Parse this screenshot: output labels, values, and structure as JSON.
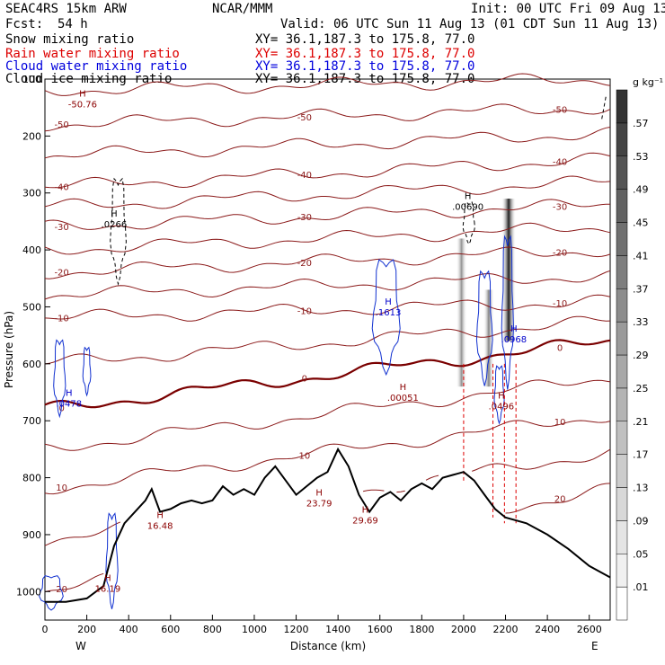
{
  "header": {
    "model": "SEAC4RS 15km ARW",
    "org": "NCAR/MMM",
    "init": "Init: 00 UTC Fri 09 Aug 13",
    "fcst_label": "Fcst:",
    "fcst_value": "54 h",
    "valid": "Valid: 06 UTC Sun 11 Aug 13 (01 CDT Sun 11 Aug 13)",
    "fields": [
      {
        "name": "Snow mixing ratio",
        "xy": "XY=  36.1,187.3 to 175.8, 77.0",
        "color": "#000000"
      },
      {
        "name": "Rain water mixing ratio",
        "xy": "XY=  36.1,187.3 to 175.8, 77.0",
        "color": "#dd0000"
      },
      {
        "name": "Cloud water mixing ratio",
        "xy": "XY=  36.1,187.3 to 175.8, 77.0",
        "color": "#0000dd"
      },
      {
        "name": "Cloud ice mixing ratio",
        "xy": "XY=  36.1,187.3 to 175.8, 77.0",
        "color": "#000000"
      }
    ]
  },
  "colorbar": {
    "unit": "g kg⁻¹",
    "levels": [
      ".01",
      ".05",
      ".09",
      ".13",
      ".17",
      ".21",
      ".25",
      ".29",
      ".33",
      ".37",
      ".41",
      ".45",
      ".49",
      ".53",
      ".57"
    ],
    "colors": [
      "#ffffff",
      "#f0f0f0",
      "#e4e4e4",
      "#d8d8d8",
      "#cccccc",
      "#c0c0c0",
      "#b4b4b4",
      "#a8a8a8",
      "#9a9a9a",
      "#8c8c8c",
      "#7e7e7e",
      "#707070",
      "#626262",
      "#545454",
      "#444444",
      "#333333"
    ]
  },
  "chart_data": {
    "type": "cross-section",
    "xlabel": "Distance (km)",
    "ylabel": "Pressure (hPa)",
    "xlim": [
      0,
      2700
    ],
    "ylim_pressure": [
      100,
      1050
    ],
    "x_ticks": [
      "0",
      "200",
      "400",
      "600",
      "800",
      "1000",
      "1200",
      "1400",
      "1600",
      "1800",
      "2000",
      "2200",
      "2400",
      "2600"
    ],
    "y_ticks": [
      "100",
      "200",
      "300",
      "400",
      "500",
      "600",
      "700",
      "800",
      "900",
      "1000"
    ],
    "end_labels": {
      "left": "W",
      "right": "E"
    },
    "temperature_isotherms_C": [
      {
        "label": "-50",
        "p_left": 180,
        "p_right": 150
      },
      {
        "label": "-40",
        "p_left": 290,
        "p_right": 240
      },
      {
        "label": "-30",
        "p_left": 360,
        "p_right": 320
      },
      {
        "label": "-20",
        "p_left": 440,
        "p_right": 400
      },
      {
        "label": "-10",
        "p_left": 520,
        "p_right": 490
      },
      {
        "label": "0",
        "p_left": 680,
        "p_right": 560
      },
      {
        "label": "10",
        "p_left": 820,
        "p_right": 690
      },
      {
        "label": "20",
        "p_left": 1000,
        "p_right": 820
      }
    ],
    "terrain": [
      [
        0,
        1018
      ],
      [
        100,
        1018
      ],
      [
        200,
        1012
      ],
      [
        280,
        990
      ],
      [
        330,
        920
      ],
      [
        380,
        880
      ],
      [
        430,
        860
      ],
      [
        480,
        840
      ],
      [
        510,
        820
      ],
      [
        550,
        860
      ],
      [
        600,
        855
      ],
      [
        650,
        845
      ],
      [
        700,
        840
      ],
      [
        750,
        845
      ],
      [
        800,
        840
      ],
      [
        850,
        815
      ],
      [
        900,
        830
      ],
      [
        950,
        820
      ],
      [
        1000,
        830
      ],
      [
        1050,
        800
      ],
      [
        1100,
        780
      ],
      [
        1150,
        805
      ],
      [
        1200,
        830
      ],
      [
        1250,
        815
      ],
      [
        1300,
        800
      ],
      [
        1350,
        790
      ],
      [
        1400,
        750
      ],
      [
        1450,
        780
      ],
      [
        1500,
        830
      ],
      [
        1550,
        860
      ],
      [
        1600,
        835
      ],
      [
        1650,
        825
      ],
      [
        1700,
        840
      ],
      [
        1750,
        820
      ],
      [
        1800,
        810
      ],
      [
        1850,
        820
      ],
      [
        1900,
        800
      ],
      [
        1950,
        795
      ],
      [
        2000,
        790
      ],
      [
        2050,
        805
      ],
      [
        2100,
        830
      ],
      [
        2150,
        855
      ],
      [
        2200,
        870
      ],
      [
        2300,
        880
      ],
      [
        2400,
        900
      ],
      [
        2500,
        925
      ],
      [
        2600,
        955
      ],
      [
        2700,
        975
      ]
    ],
    "snow_regions": [
      {
        "x": 1990,
        "p_top": 380,
        "p_bot": 640,
        "max": 0.25
      },
      {
        "x": 2120,
        "p_top": 470,
        "p_bot": 640,
        "max": 0.29
      },
      {
        "x": 2215,
        "p_top": 310,
        "p_bot": 560,
        "max": 0.57
      }
    ],
    "extrema_labels": [
      {
        "x": 180,
        "p": 150,
        "text": "-50.76",
        "color": "#8b0000"
      },
      {
        "x": 330,
        "p": 360,
        "text": ".0266",
        "color": "#000000"
      },
      {
        "x": 1640,
        "p": 515,
        "text": ".1613",
        "color": "#0000cc"
      },
      {
        "x": 2020,
        "p": 330,
        "text": ".00690",
        "color": "#000000"
      },
      {
        "x": 1710,
        "p": 665,
        "text": ".00051",
        "color": "#8b0000"
      },
      {
        "x": 2240,
        "p": 562,
        "text": ".0968",
        "color": "#0000cc"
      },
      {
        "x": 2180,
        "p": 680,
        "text": ".0496",
        "color": "#8b0000"
      },
      {
        "x": 115,
        "p": 675,
        "text": ".0478",
        "color": "#0000cc"
      },
      {
        "x": 300,
        "p": 1000,
        "text": "16.19",
        "color": "#8b0000"
      },
      {
        "x": 550,
        "p": 890,
        "text": "16.48",
        "color": "#8b0000"
      },
      {
        "x": 1310,
        "p": 850,
        "text": "23.79",
        "color": "#8b0000"
      },
      {
        "x": 1530,
        "p": 880,
        "text": "29.69",
        "color": "#8b0000"
      }
    ]
  }
}
